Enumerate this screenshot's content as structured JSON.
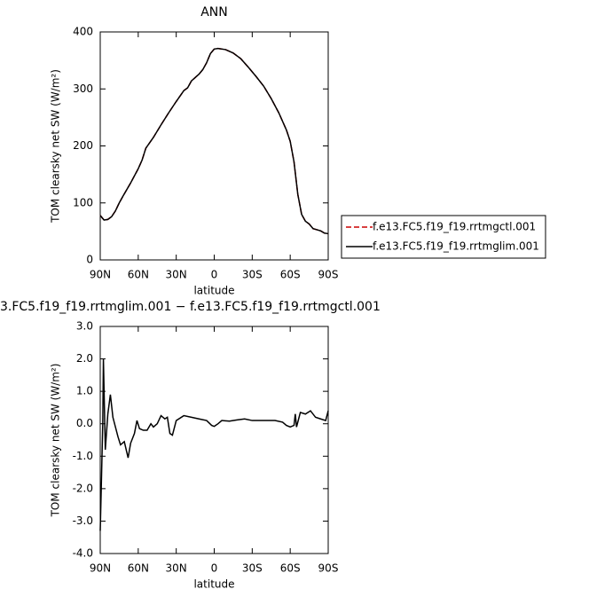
{
  "chart_data": [
    {
      "type": "line",
      "title": "ANN",
      "xlabel": "latitude",
      "ylabel": "TOM clearsky net SW (W/m²)",
      "x": [
        90,
        87,
        84,
        81,
        78,
        75,
        72,
        66,
        60,
        57,
        54,
        48,
        42,
        36,
        30,
        24,
        21,
        18,
        12,
        9,
        6,
        3,
        0,
        -3,
        -9,
        -15,
        -21,
        -27,
        -33,
        -39,
        -45,
        -51,
        -57,
        -60,
        -63,
        -66,
        -69,
        -72,
        -75,
        -78,
        -81,
        -84,
        -87,
        -90
      ],
      "series": [
        {
          "name": "f.e13.FC5.f19_f19.rrtmgctl.001",
          "color": "#cc0000",
          "dash": true,
          "values": [
            78,
            70,
            71,
            76,
            86,
            100,
            112,
            135,
            160,
            175,
            196,
            215,
            237,
            258,
            278,
            297,
            302,
            314,
            326,
            334,
            346,
            362,
            370,
            371,
            369,
            363,
            353,
            338,
            322,
            305,
            283,
            258,
            228,
            208,
            172,
            115,
            80,
            68,
            63,
            55,
            53,
            51,
            47,
            46
          ]
        },
        {
          "name": "f.e13.FC5.f19_f19.rrtmglim.001",
          "color": "#000000",
          "dash": false,
          "values": [
            78,
            70,
            71,
            76,
            86,
            100,
            112,
            135,
            160,
            175,
            196,
            215,
            237,
            258,
            278,
            297,
            302,
            314,
            326,
            334,
            346,
            362,
            370,
            371,
            369,
            363,
            353,
            338,
            322,
            305,
            283,
            258,
            228,
            208,
            172,
            115,
            80,
            68,
            63,
            55,
            53,
            51,
            47,
            46
          ]
        }
      ],
      "xlim": [
        90,
        -90
      ],
      "xticks": [
        {
          "value": 90,
          "label": "90N"
        },
        {
          "value": 60,
          "label": "60N"
        },
        {
          "value": 30,
          "label": "30N"
        },
        0,
        {
          "value": -30,
          "label": "30S"
        },
        {
          "value": -60,
          "label": "60S"
        },
        {
          "value": -90,
          "label": "90S"
        }
      ],
      "ylim": [
        0,
        400
      ],
      "yticks": [
        0,
        100,
        200,
        300,
        400
      ],
      "legend": "right"
    },
    {
      "type": "line",
      "title": "3.FC5.f19_f19.rrtmglim.001 − f.e13.FC5.f19_f19.rrtmgctl.001",
      "xlabel": "latitude",
      "ylabel": "TOM clearsky net SW (W/m²)",
      "x": [
        90,
        88,
        87.5,
        86,
        84,
        82,
        80,
        76,
        74,
        71,
        68,
        66,
        63,
        61,
        59,
        56,
        53,
        50,
        48,
        45,
        42,
        39,
        37,
        35,
        33,
        30,
        24,
        18,
        12,
        6,
        2,
        0,
        -3,
        -6,
        -12,
        -18,
        -24,
        -30,
        -40,
        -48,
        -54,
        -57,
        -60,
        -63,
        -64,
        -65,
        -68,
        -72,
        -76,
        -80,
        -84,
        -88,
        -90
      ],
      "color": "#000000",
      "values": [
        -3.3,
        0.0,
        2.0,
        -0.8,
        0.3,
        0.9,
        0.2,
        -0.4,
        -0.65,
        -0.55,
        -1.05,
        -0.6,
        -0.3,
        0.1,
        -0.15,
        -0.2,
        -0.2,
        0.0,
        -0.1,
        0.0,
        0.25,
        0.15,
        0.2,
        -0.3,
        -0.35,
        0.1,
        0.25,
        0.2,
        0.15,
        0.1,
        -0.05,
        -0.08,
        0.0,
        0.1,
        0.08,
        0.12,
        0.15,
        0.1,
        0.1,
        0.1,
        0.05,
        -0.05,
        -0.1,
        -0.05,
        0.3,
        -0.1,
        0.35,
        0.3,
        0.4,
        0.2,
        0.15,
        0.1,
        0.4
      ],
      "xlim": [
        90,
        -90
      ],
      "xticks": [
        {
          "value": 90,
          "label": "90N"
        },
        {
          "value": 60,
          "label": "60N"
        },
        {
          "value": 30,
          "label": "30N"
        },
        0,
        {
          "value": -30,
          "label": "30S"
        },
        {
          "value": -60,
          "label": "60S"
        },
        {
          "value": -90,
          "label": "90S"
        }
      ],
      "ylim": [
        -4,
        3
      ],
      "yticks": [
        {
          "value": 3,
          "label": "3.0"
        },
        {
          "value": 2,
          "label": "2.0"
        },
        {
          "value": 1,
          "label": "1.0"
        },
        {
          "value": 0,
          "label": "0.0"
        },
        {
          "value": -1,
          "label": "-1.0"
        },
        {
          "value": -2,
          "label": "-2.0"
        },
        {
          "value": -3,
          "label": "-3.0"
        },
        {
          "value": -4,
          "label": "-4.0"
        }
      ]
    }
  ]
}
